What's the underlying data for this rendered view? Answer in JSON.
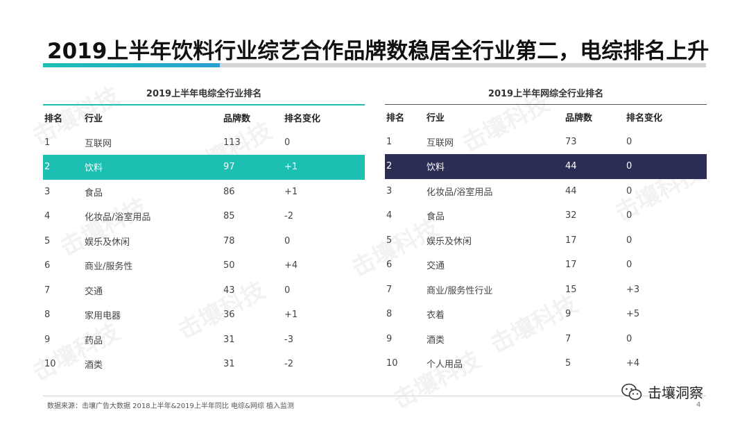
{
  "title": "2019上半年饮料行业综艺合作品牌数稳居全行业第二，电综排名上升",
  "watermark_text": "击壤科技",
  "left_table": {
    "heading": "2019上半年电综全行业排名",
    "columns": [
      "排名",
      "行业",
      "品牌数",
      "排名变化"
    ],
    "highlight_color": "#1dbfb3",
    "rows": [
      [
        "1",
        "互联网",
        "113",
        "0"
      ],
      [
        "2",
        "饮料",
        "97",
        "+1"
      ],
      [
        "3",
        "食品",
        "86",
        "+1"
      ],
      [
        "4",
        "化妆品/浴室用品",
        "85",
        "-2"
      ],
      [
        "5",
        "娱乐及休闲",
        "78",
        "0"
      ],
      [
        "6",
        "商业/服务性",
        "50",
        "+4"
      ],
      [
        "7",
        "交通",
        "43",
        "0"
      ],
      [
        "8",
        "家用电器",
        "36",
        "+1"
      ],
      [
        "9",
        "药品",
        "31",
        "-3"
      ],
      [
        "10",
        "酒类",
        "31",
        "-2"
      ]
    ]
  },
  "right_table": {
    "heading": "2019上半年网综全行业排名",
    "columns": [
      "排名",
      "行业",
      "品牌数",
      "排名变化"
    ],
    "highlight_color": "#2b2d54",
    "rows": [
      [
        "1",
        "互联网",
        "73",
        "0"
      ],
      [
        "2",
        "饮料",
        "44",
        "0"
      ],
      [
        "3",
        "化妆品/浴室用品",
        "44",
        "0"
      ],
      [
        "4",
        "食品",
        "32",
        "0"
      ],
      [
        "5",
        "娱乐及休闲",
        "17",
        "0"
      ],
      [
        "6",
        "交通",
        "17",
        "0"
      ],
      [
        "7",
        "商业/服务性行业",
        "15",
        "+3"
      ],
      [
        "8",
        "衣着",
        "9",
        "+5"
      ],
      [
        "9",
        "酒类",
        "7",
        "0"
      ],
      [
        "10",
        "个人用品",
        "5",
        "+4"
      ]
    ]
  },
  "source": "数据来源：击壤广告大数据  2018上半年&2019上半年同比  电综&网综  植入监测",
  "brand": "击壤洞察",
  "page_number": "4",
  "accent_color": "#1dbfb3"
}
